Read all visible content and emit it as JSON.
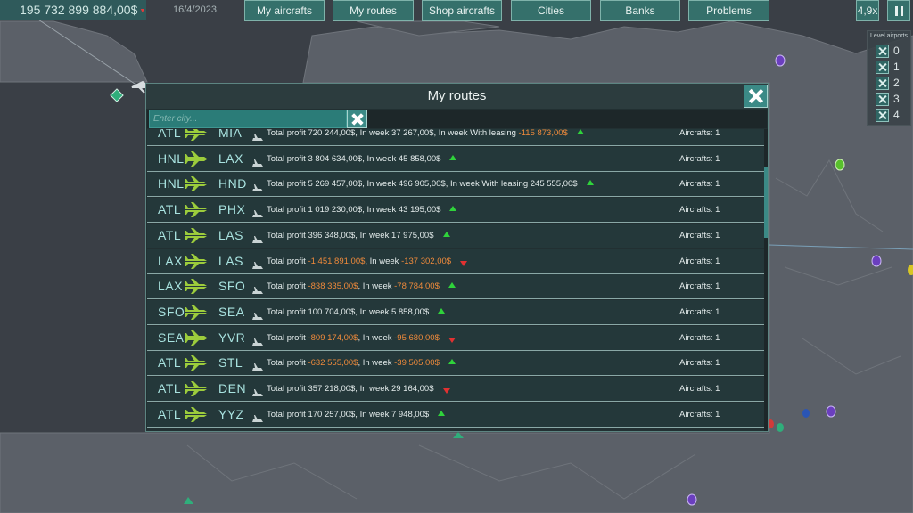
{
  "topbar": {
    "money": "195 732 899 884,00$",
    "date": "16/4/2023",
    "nav": [
      {
        "label": "My aircrafts"
      },
      {
        "label": "My routes"
      },
      {
        "label": "Shop aircrafts"
      },
      {
        "label": "Cities"
      },
      {
        "label": "Banks"
      },
      {
        "label": "Problems"
      }
    ],
    "speed": "4,9x"
  },
  "level_airports": {
    "title": "Level airports",
    "levels": [
      "0",
      "1",
      "2",
      "3",
      "4"
    ]
  },
  "dialog": {
    "title": "My routes",
    "filter_placeholder": "Enter city...",
    "routes": [
      {
        "from": "ATL",
        "to": "MIA",
        "parts": [
          [
            "Total profit 720 244,00$, In week 37 267,00$, In week With leasing ",
            false
          ],
          [
            "-115 873,00$",
            true
          ]
        ],
        "trend": "up",
        "aircrafts": "Aircrafts: 1"
      },
      {
        "from": "HNL",
        "to": "LAX",
        "parts": [
          [
            "Total profit 3 804 634,00$, In week 45 858,00$",
            false
          ]
        ],
        "trend": "up",
        "aircrafts": "Aircrafts: 1"
      },
      {
        "from": "HNL",
        "to": "HND",
        "parts": [
          [
            "Total profit 5 269 457,00$, In week 496 905,00$, In week With leasing 245 555,00$",
            false
          ]
        ],
        "trend": "up",
        "aircrafts": "Aircrafts: 1"
      },
      {
        "from": "ATL",
        "to": "PHX",
        "parts": [
          [
            "Total profit 1 019 230,00$, In week 43 195,00$",
            false
          ]
        ],
        "trend": "up",
        "aircrafts": "Aircrafts: 1"
      },
      {
        "from": "ATL",
        "to": "LAS",
        "parts": [
          [
            "Total profit 396 348,00$, In week 17 975,00$",
            false
          ]
        ],
        "trend": "up",
        "aircrafts": "Aircrafts: 1"
      },
      {
        "from": "LAX",
        "to": "LAS",
        "parts": [
          [
            "Total profit ",
            false
          ],
          [
            "-1 451 891,00$",
            true
          ],
          [
            ", In week ",
            false
          ],
          [
            "-137 302,00$",
            true
          ]
        ],
        "trend": "down",
        "aircrafts": "Aircrafts: 1"
      },
      {
        "from": "LAX",
        "to": "SFO",
        "parts": [
          [
            "Total profit ",
            false
          ],
          [
            "-838 335,00$",
            true
          ],
          [
            ", In week ",
            false
          ],
          [
            "-78 784,00$",
            true
          ]
        ],
        "trend": "up",
        "aircrafts": "Aircrafts: 1"
      },
      {
        "from": "SFO",
        "to": "SEA",
        "parts": [
          [
            "Total profit 100 704,00$, In week 5 858,00$",
            false
          ]
        ],
        "trend": "up",
        "aircrafts": "Aircrafts: 1"
      },
      {
        "from": "SEA",
        "to": "YVR",
        "parts": [
          [
            "Total profit ",
            false
          ],
          [
            "-809 174,00$",
            true
          ],
          [
            ", In week ",
            false
          ],
          [
            "-95 680,00$",
            true
          ]
        ],
        "trend": "down",
        "aircrafts": "Aircrafts: 1"
      },
      {
        "from": "ATL",
        "to": "STL",
        "parts": [
          [
            "Total profit ",
            false
          ],
          [
            "-632 555,00$",
            true
          ],
          [
            ", In week ",
            false
          ],
          [
            "-39 505,00$",
            true
          ]
        ],
        "trend": "up",
        "aircrafts": "Aircrafts: 1"
      },
      {
        "from": "ATL",
        "to": "DEN",
        "parts": [
          [
            "Total profit 357 218,00$, In week 29 164,00$",
            false
          ]
        ],
        "trend": "down",
        "aircrafts": "Aircrafts: 1"
      },
      {
        "from": "ATL",
        "to": "YYZ",
        "parts": [
          [
            "Total profit 170 257,00$, In week 7 948,00$",
            false
          ]
        ],
        "trend": "up",
        "aircrafts": "Aircrafts: 1"
      }
    ]
  },
  "colors": {
    "accent": "#3b8a86",
    "negative": "#ef8a3b",
    "trend_up": "#2fd33b",
    "trend_down": "#e23131",
    "airport_code": "#a9e3e0",
    "plane": "#9ccc3c"
  }
}
